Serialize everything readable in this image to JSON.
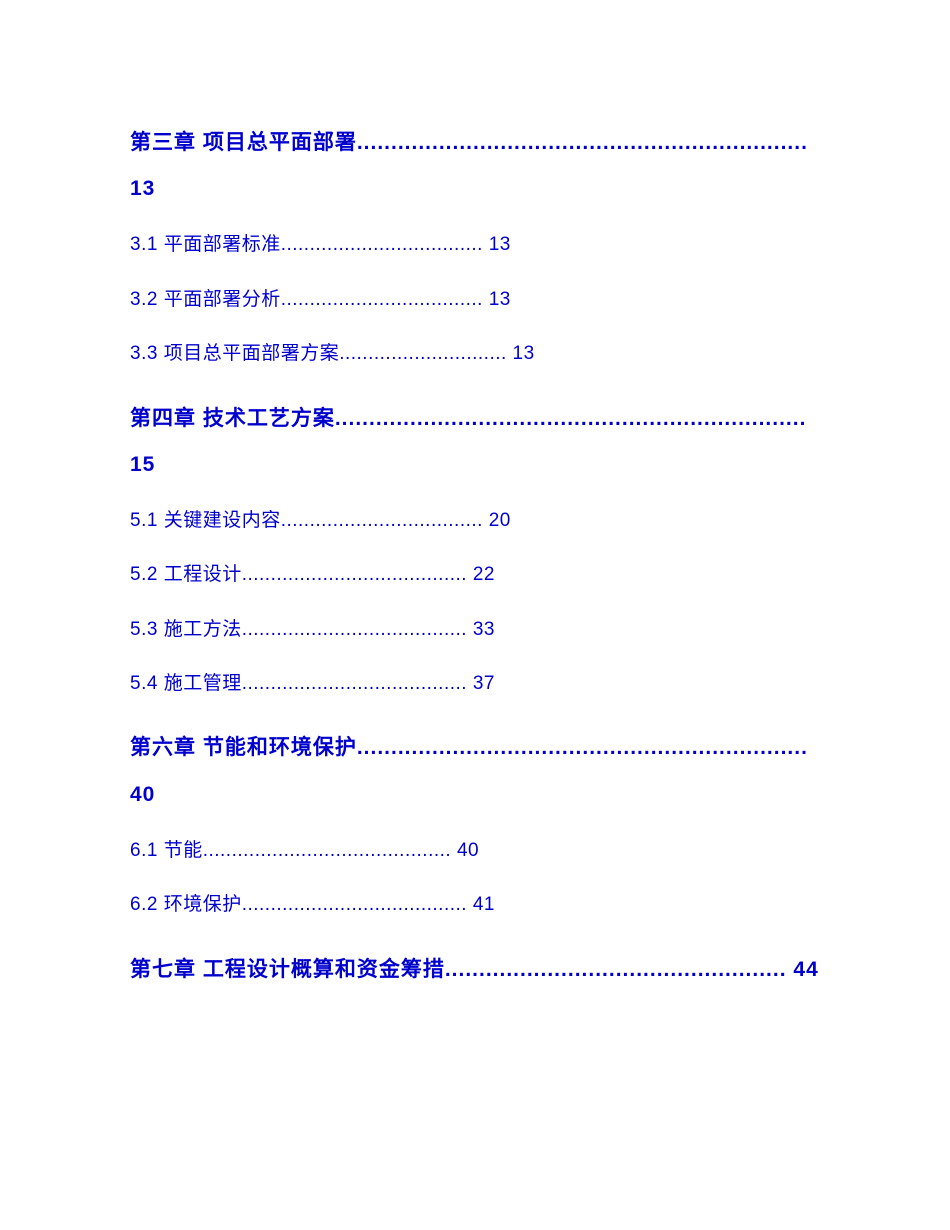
{
  "toc": {
    "chapters": [
      {
        "heading": "第三章 项目总平面部署.................................................................. 13",
        "sections": [
          {
            "text": "3.1 平面部署标准................................... 13"
          },
          {
            "text": "3.2 平面部署分析................................... 13"
          },
          {
            "text": "3.3 项目总平面部署方案............................. 13"
          }
        ]
      },
      {
        "heading": "第四章 技术工艺方案..................................................................... 15",
        "sections": [
          {
            "text": "5.1 关键建设内容................................... 20"
          },
          {
            "text": "5.2 工程设计....................................... 22"
          },
          {
            "text": "5.3 施工方法....................................... 33"
          },
          {
            "text": "5.4 施工管理....................................... 37"
          }
        ]
      },
      {
        "heading": "第六章 节能和环境保护.................................................................. 40",
        "sections": [
          {
            "text": "6.1 节能........................................... 40"
          },
          {
            "text": "6.2 环境保护....................................... 41"
          }
        ]
      },
      {
        "heading": "第七章 工程设计概算和资金筹措.................................................. 44",
        "sections": []
      }
    ]
  },
  "styles": {
    "heading_color": "#0000cd",
    "section_color": "#0000cd",
    "background_color": "#ffffff",
    "heading_fontsize": 21,
    "section_fontsize": 19,
    "heading_fontweight": "bold",
    "section_fontweight": "normal"
  }
}
